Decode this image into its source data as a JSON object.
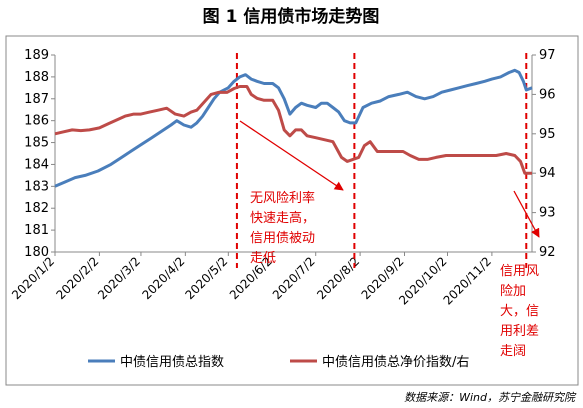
{
  "title": "图 1  信用债市场走势图",
  "source": "数据来源：Wind，苏宁金融研究院",
  "colors": {
    "left_series": "#4a7ebb",
    "right_series": "#be4b48",
    "annotation": "#e00000",
    "axis": "#888888"
  },
  "annotations": [
    {
      "lines": [
        "无风险利率",
        "快速走高，",
        "信用债被动",
        "走低"
      ]
    },
    {
      "lines": [
        "信用风",
        "险加",
        "大，信",
        "用利差",
        "走阔"
      ]
    }
  ],
  "chart_data": {
    "type": "line",
    "x_ticks": [
      "2020/1/2",
      "2020/2/2",
      "2020/3/2",
      "2020/4/2",
      "2020/5/2",
      "2020/6/2",
      "2020/7/2",
      "2020/8/2",
      "2020/9/2",
      "2020/10/2",
      "2020/11/2"
    ],
    "x_range": [
      "2020-01-02",
      "2020-11-30"
    ],
    "y_left": {
      "min": 180,
      "max": 189,
      "step": 1
    },
    "y_right": {
      "min": 92,
      "max": 97,
      "step": 1
    },
    "dashed_lines_x": [
      "2020-05-08",
      "2020-07-29",
      "2020-11-26"
    ],
    "series": [
      {
        "name": "中债信用债总指数",
        "axis": "left",
        "points": [
          [
            "2020-01-02",
            183.0
          ],
          [
            "2020-01-09",
            183.2
          ],
          [
            "2020-01-16",
            183.4
          ],
          [
            "2020-01-23",
            183.5
          ],
          [
            "2020-02-01",
            183.7
          ],
          [
            "2020-02-10",
            184.0
          ],
          [
            "2020-02-17",
            184.3
          ],
          [
            "2020-02-24",
            184.6
          ],
          [
            "2020-03-02",
            184.9
          ],
          [
            "2020-03-09",
            185.2
          ],
          [
            "2020-03-16",
            185.5
          ],
          [
            "2020-03-23",
            185.8
          ],
          [
            "2020-03-27",
            186.0
          ],
          [
            "2020-04-01",
            185.8
          ],
          [
            "2020-04-06",
            185.7
          ],
          [
            "2020-04-10",
            185.9
          ],
          [
            "2020-04-14",
            186.2
          ],
          [
            "2020-04-18",
            186.6
          ],
          [
            "2020-04-22",
            187.0
          ],
          [
            "2020-04-26",
            187.3
          ],
          [
            "2020-05-02",
            187.5
          ],
          [
            "2020-05-06",
            187.8
          ],
          [
            "2020-05-10",
            188.0
          ],
          [
            "2020-05-14",
            188.1
          ],
          [
            "2020-05-18",
            187.9
          ],
          [
            "2020-05-22",
            187.8
          ],
          [
            "2020-05-27",
            187.7
          ],
          [
            "2020-06-02",
            187.7
          ],
          [
            "2020-06-06",
            187.5
          ],
          [
            "2020-06-10",
            187.0
          ],
          [
            "2020-06-14",
            186.3
          ],
          [
            "2020-06-18",
            186.6
          ],
          [
            "2020-06-22",
            186.8
          ],
          [
            "2020-06-26",
            186.7
          ],
          [
            "2020-07-02",
            186.6
          ],
          [
            "2020-07-06",
            186.8
          ],
          [
            "2020-07-10",
            186.8
          ],
          [
            "2020-07-14",
            186.6
          ],
          [
            "2020-07-18",
            186.4
          ],
          [
            "2020-07-22",
            186.0
          ],
          [
            "2020-07-26",
            185.9
          ],
          [
            "2020-07-30",
            185.9
          ],
          [
            "2020-08-04",
            186.6
          ],
          [
            "2020-08-10",
            186.8
          ],
          [
            "2020-08-16",
            186.9
          ],
          [
            "2020-08-22",
            187.1
          ],
          [
            "2020-08-29",
            187.2
          ],
          [
            "2020-09-04",
            187.3
          ],
          [
            "2020-09-10",
            187.1
          ],
          [
            "2020-09-16",
            187.0
          ],
          [
            "2020-09-22",
            187.1
          ],
          [
            "2020-09-28",
            187.3
          ],
          [
            "2020-10-04",
            187.4
          ],
          [
            "2020-10-10",
            187.5
          ],
          [
            "2020-10-16",
            187.6
          ],
          [
            "2020-10-22",
            187.7
          ],
          [
            "2020-10-28",
            187.8
          ],
          [
            "2020-11-02",
            187.9
          ],
          [
            "2020-11-08",
            188.0
          ],
          [
            "2020-11-14",
            188.2
          ],
          [
            "2020-11-18",
            188.3
          ],
          [
            "2020-11-21",
            188.2
          ],
          [
            "2020-11-24",
            187.8
          ],
          [
            "2020-11-26",
            187.4
          ],
          [
            "2020-11-30",
            187.5
          ]
        ]
      },
      {
        "name": "中债信用债总净价指数/右",
        "axis": "right",
        "points": [
          [
            "2020-01-02",
            95.0
          ],
          [
            "2020-01-08",
            95.05
          ],
          [
            "2020-01-14",
            95.1
          ],
          [
            "2020-01-20",
            95.08
          ],
          [
            "2020-01-26",
            95.1
          ],
          [
            "2020-02-02",
            95.15
          ],
          [
            "2020-02-08",
            95.25
          ],
          [
            "2020-02-14",
            95.35
          ],
          [
            "2020-02-20",
            95.45
          ],
          [
            "2020-02-26",
            95.5
          ],
          [
            "2020-03-02",
            95.5
          ],
          [
            "2020-03-08",
            95.55
          ],
          [
            "2020-03-14",
            95.6
          ],
          [
            "2020-03-20",
            95.65
          ],
          [
            "2020-03-26",
            95.5
          ],
          [
            "2020-04-01",
            95.45
          ],
          [
            "2020-04-06",
            95.55
          ],
          [
            "2020-04-10",
            95.6
          ],
          [
            "2020-04-15",
            95.8
          ],
          [
            "2020-04-20",
            96.0
          ],
          [
            "2020-04-25",
            96.05
          ],
          [
            "2020-05-01",
            96.05
          ],
          [
            "2020-05-06",
            96.15
          ],
          [
            "2020-05-10",
            96.2
          ],
          [
            "2020-05-15",
            96.2
          ],
          [
            "2020-05-18",
            96.0
          ],
          [
            "2020-05-22",
            95.9
          ],
          [
            "2020-05-27",
            95.85
          ],
          [
            "2020-06-02",
            95.85
          ],
          [
            "2020-06-06",
            95.6
          ],
          [
            "2020-06-10",
            95.1
          ],
          [
            "2020-06-14",
            94.95
          ],
          [
            "2020-06-18",
            95.1
          ],
          [
            "2020-06-22",
            95.1
          ],
          [
            "2020-06-26",
            94.95
          ],
          [
            "2020-07-02",
            94.9
          ],
          [
            "2020-07-08",
            94.85
          ],
          [
            "2020-07-14",
            94.8
          ],
          [
            "2020-07-20",
            94.4
          ],
          [
            "2020-07-24",
            94.3
          ],
          [
            "2020-07-28",
            94.35
          ],
          [
            "2020-08-01",
            94.4
          ],
          [
            "2020-08-05",
            94.7
          ],
          [
            "2020-08-09",
            94.8
          ],
          [
            "2020-08-14",
            94.55
          ],
          [
            "2020-08-20",
            94.55
          ],
          [
            "2020-08-26",
            94.55
          ],
          [
            "2020-09-01",
            94.55
          ],
          [
            "2020-09-06",
            94.45
          ],
          [
            "2020-09-12",
            94.35
          ],
          [
            "2020-09-18",
            94.35
          ],
          [
            "2020-09-24",
            94.4
          ],
          [
            "2020-10-01",
            94.45
          ],
          [
            "2020-10-10",
            94.45
          ],
          [
            "2020-10-20",
            94.45
          ],
          [
            "2020-10-30",
            94.45
          ],
          [
            "2020-11-05",
            94.45
          ],
          [
            "2020-11-12",
            94.5
          ],
          [
            "2020-11-18",
            94.45
          ],
          [
            "2020-11-22",
            94.3
          ],
          [
            "2020-11-25",
            94.0
          ],
          [
            "2020-11-27",
            94.0
          ],
          [
            "2020-11-30",
            94.0
          ]
        ]
      }
    ]
  }
}
